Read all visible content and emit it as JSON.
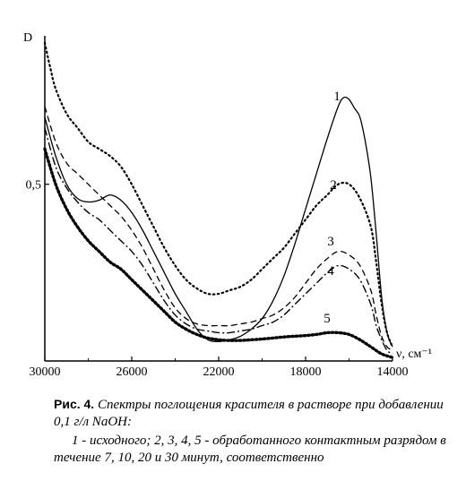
{
  "chart_data": {
    "type": "line",
    "ylabel": "D",
    "xlabel": "ν, см⁻¹",
    "x_reversed": true,
    "xlim": [
      30000,
      14000
    ],
    "ylim": [
      0,
      0.92
    ],
    "xticks": [
      30000,
      26000,
      22000,
      18000,
      14000
    ],
    "xtick_labels": [
      "30000",
      "26000",
      "22000",
      "18000",
      "14000"
    ],
    "yticks": [
      0.5
    ],
    "ytick_labels": [
      "0,5"
    ],
    "series": [
      {
        "name": "1",
        "style": "solid",
        "x": [
          30000,
          29500,
          29000,
          28500,
          28000,
          27500,
          27000,
          26500,
          26000,
          25500,
          25000,
          24500,
          24000,
          23500,
          23000,
          22500,
          22000,
          21500,
          21000,
          20500,
          20000,
          19500,
          19000,
          18500,
          18000,
          17500,
          17000,
          16500,
          16250,
          16000,
          15750,
          15500,
          15250,
          15000,
          14750,
          14500,
          14250,
          14000
        ],
        "y": [
          0.69,
          0.58,
          0.5,
          0.46,
          0.45,
          0.455,
          0.47,
          0.455,
          0.42,
          0.37,
          0.31,
          0.25,
          0.19,
          0.14,
          0.09,
          0.06,
          0.055,
          0.06,
          0.07,
          0.09,
          0.12,
          0.17,
          0.24,
          0.33,
          0.43,
          0.53,
          0.63,
          0.72,
          0.745,
          0.74,
          0.715,
          0.69,
          0.62,
          0.52,
          0.36,
          0.18,
          0.08,
          0.04
        ]
      },
      {
        "name": "2",
        "style": "dotted",
        "x": [
          30000,
          29750,
          29500,
          29000,
          28500,
          28000,
          27500,
          27000,
          26500,
          26000,
          25500,
          25000,
          24500,
          24000,
          23500,
          23000,
          22500,
          22000,
          21500,
          21000,
          20500,
          20000,
          19500,
          19000,
          18500,
          18000,
          17500,
          17000,
          16500,
          16000,
          15500,
          15000,
          14750,
          14500,
          14250,
          14000
        ],
        "y": [
          0.9,
          0.83,
          0.77,
          0.7,
          0.66,
          0.62,
          0.6,
          0.58,
          0.55,
          0.5,
          0.44,
          0.38,
          0.32,
          0.27,
          0.23,
          0.205,
          0.19,
          0.19,
          0.2,
          0.21,
          0.23,
          0.26,
          0.29,
          0.32,
          0.36,
          0.4,
          0.44,
          0.47,
          0.5,
          0.5,
          0.46,
          0.38,
          0.28,
          0.16,
          0.08,
          0.04
        ]
      },
      {
        "name": "3",
        "style": "dashed",
        "x": [
          30000,
          29500,
          29000,
          28500,
          28000,
          27500,
          27000,
          26500,
          26000,
          25500,
          25000,
          24500,
          24000,
          23500,
          23000,
          22500,
          22000,
          21500,
          21000,
          20500,
          20000,
          19500,
          19000,
          18500,
          18000,
          17500,
          17000,
          16500,
          16000,
          15500,
          15000,
          14750,
          14500,
          14250,
          14000
        ],
        "y": [
          0.72,
          0.62,
          0.56,
          0.53,
          0.5,
          0.47,
          0.44,
          0.41,
          0.37,
          0.32,
          0.26,
          0.2,
          0.15,
          0.12,
          0.105,
          0.1,
          0.1,
          0.1,
          0.105,
          0.11,
          0.12,
          0.13,
          0.15,
          0.18,
          0.22,
          0.26,
          0.29,
          0.31,
          0.3,
          0.27,
          0.2,
          0.13,
          0.07,
          0.04,
          0.03
        ]
      },
      {
        "name": "4",
        "style": "dashdot",
        "x": [
          30000,
          29500,
          29000,
          28500,
          28000,
          27500,
          27000,
          26500,
          26000,
          25500,
          25000,
          24500,
          24000,
          23500,
          23000,
          22500,
          22000,
          21500,
          21000,
          20500,
          20000,
          19500,
          19000,
          18500,
          18000,
          17500,
          17000,
          16500,
          16000,
          15500,
          15000,
          14750,
          14500,
          14250,
          14000
        ],
        "y": [
          0.66,
          0.55,
          0.49,
          0.45,
          0.42,
          0.4,
          0.37,
          0.34,
          0.31,
          0.27,
          0.22,
          0.17,
          0.13,
          0.105,
          0.09,
          0.085,
          0.08,
          0.08,
          0.085,
          0.09,
          0.1,
          0.11,
          0.13,
          0.16,
          0.19,
          0.22,
          0.25,
          0.27,
          0.26,
          0.23,
          0.16,
          0.1,
          0.06,
          0.03,
          0.02
        ]
      },
      {
        "name": "5",
        "style": "heavy-dotted",
        "x": [
          30000,
          29500,
          29000,
          28500,
          28000,
          27500,
          27000,
          26500,
          26000,
          25500,
          25000,
          24500,
          24000,
          23500,
          23000,
          22500,
          22000,
          21500,
          21000,
          20500,
          20000,
          19500,
          19000,
          18500,
          18000,
          17500,
          17000,
          16500,
          16000,
          15500,
          15000,
          14500,
          14000
        ],
        "y": [
          0.6,
          0.5,
          0.43,
          0.38,
          0.34,
          0.31,
          0.28,
          0.26,
          0.23,
          0.2,
          0.17,
          0.14,
          0.11,
          0.09,
          0.075,
          0.065,
          0.06,
          0.058,
          0.058,
          0.06,
          0.062,
          0.065,
          0.068,
          0.07,
          0.072,
          0.075,
          0.08,
          0.08,
          0.075,
          0.06,
          0.04,
          0.02,
          0.01
        ]
      }
    ]
  },
  "caption": {
    "figure_number": "Рис. 4.",
    "title": "Спектры поглощения красителя в растворе при добавлении 0,1 г/л NaOH:",
    "description": "1 - исходного; 2, 3, 4, 5 - обработанного контактным разрядом в течение 7, 10, 20 и 30 минут, соответственно"
  }
}
